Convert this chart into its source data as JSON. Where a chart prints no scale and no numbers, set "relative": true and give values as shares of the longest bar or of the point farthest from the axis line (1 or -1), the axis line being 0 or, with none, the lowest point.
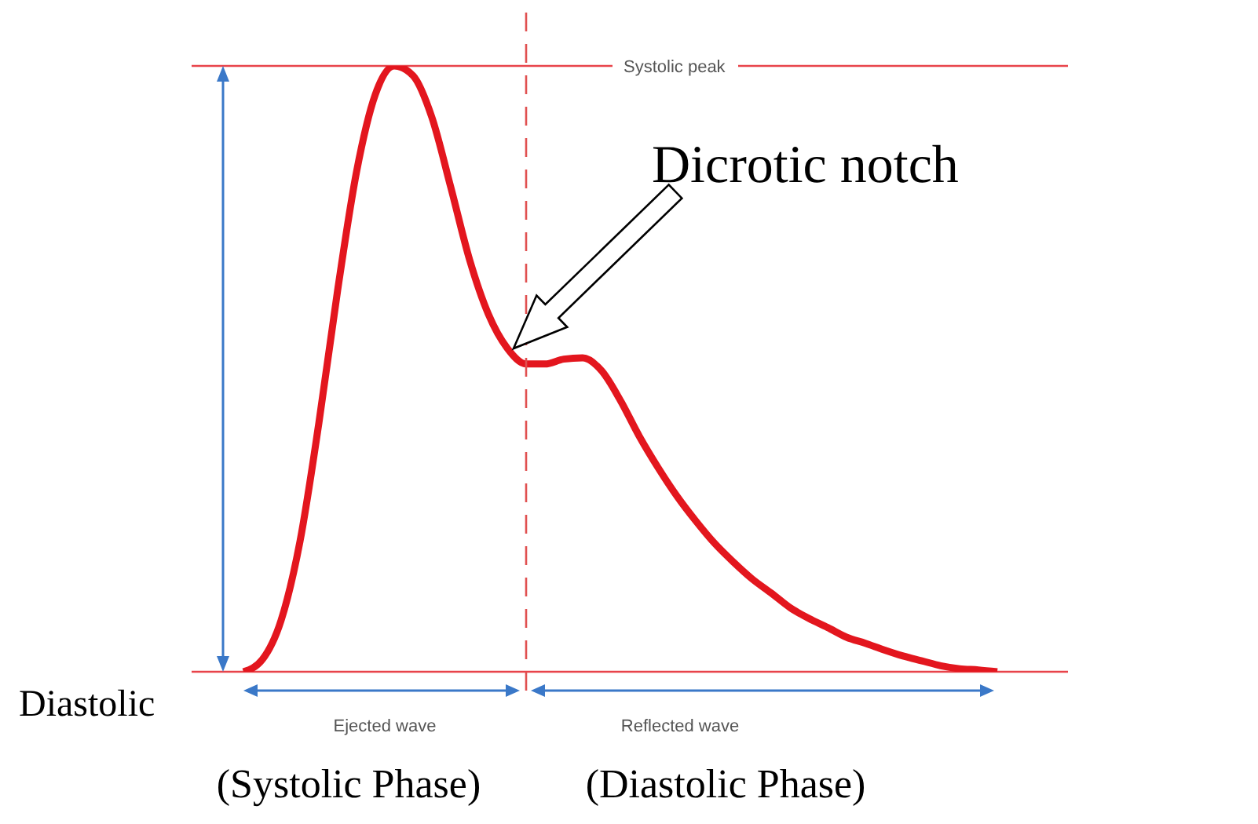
{
  "chart_data": {
    "type": "line",
    "relative": true,
    "categories": [
      null,
      null,
      null,
      null,
      null,
      null,
      null,
      null,
      null,
      null,
      null,
      null,
      null,
      null,
      null,
      null,
      null,
      null,
      null,
      null,
      null,
      null,
      null,
      null,
      null,
      null,
      null,
      null,
      null,
      null,
      null,
      null,
      null,
      null,
      null,
      null,
      null,
      null,
      null,
      null,
      null
    ],
    "series": [
      {
        "color": "#e3161e",
        "values": [
          0,
          0.02,
          0.085,
          0.215,
          0.41,
          0.63,
          0.825,
          0.953,
          1,
          0.984,
          0.915,
          0.8,
          0.68,
          0.59,
          0.534,
          0.508,
          0.508,
          0.516,
          0.518,
          0.497,
          0.448,
          0.389,
          0.337,
          0.29,
          0.249,
          0.212,
          0.181,
          0.153,
          0.13,
          0.106,
          0.088,
          0.073,
          0.057,
          0.047,
          0.036,
          0.026,
          0.018,
          0.01,
          0.005,
          0.003,
          0
        ]
      }
    ],
    "ref_lines": [
      {
        "axis": "y",
        "value": 1,
        "label": "Systolic peak",
        "color": "#e8434a",
        "line_style": "solid"
      },
      {
        "axis": "y",
        "value": 0,
        "label": "Diastolic",
        "color": "#e8434a",
        "line_style": "solid"
      }
    ],
    "annotations": [
      "Dicrotic notch",
      "Ejected wave",
      "Reflected wave",
      "(Systolic Phase)",
      "(Diastolic Phase)"
    ],
    "marker": "none",
    "line_style": "solid",
    "tick_labels": false
  }
}
